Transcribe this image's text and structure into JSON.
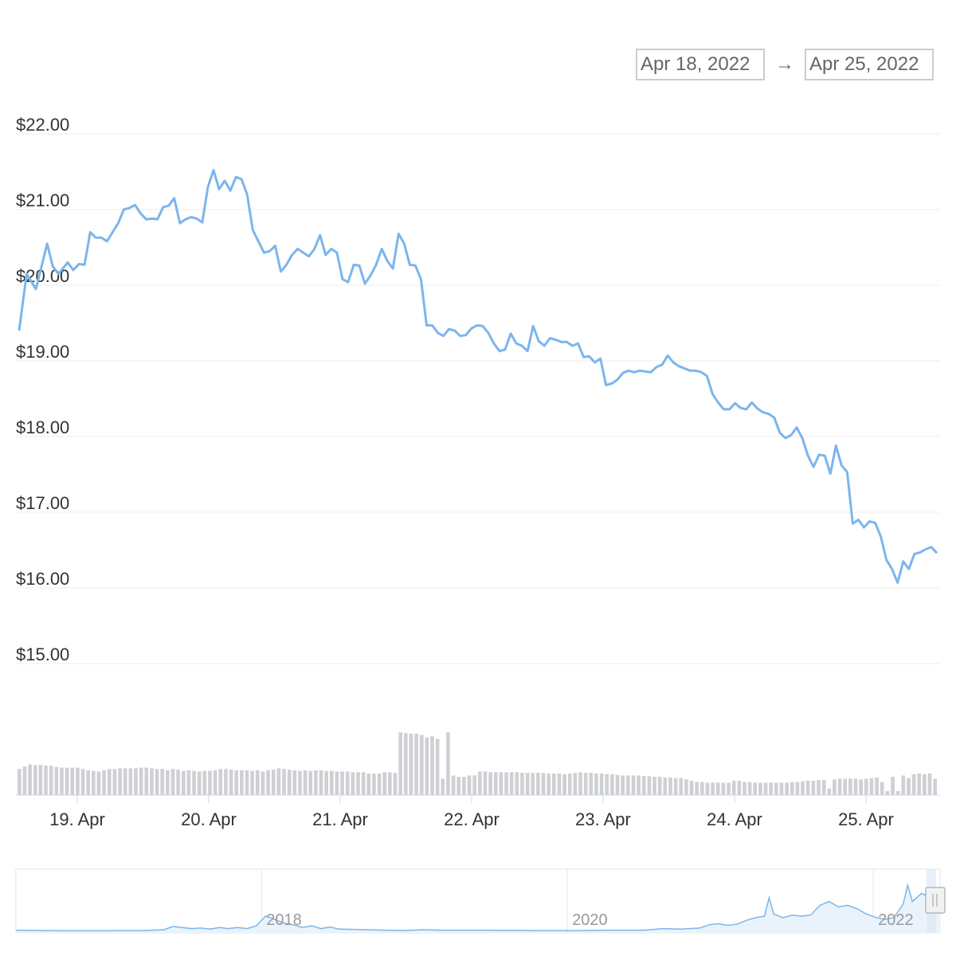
{
  "range_selector": {
    "from": "Apr 18, 2022",
    "arrow": "→",
    "to": "Apr 25, 2022"
  },
  "chart_data": {
    "type": "line",
    "y_axis": {
      "min": 15,
      "max": 22,
      "ticks": [
        "$15.00",
        "$16.00",
        "$17.00",
        "$18.00",
        "$19.00",
        "$20.00",
        "$21.00",
        "$22.00"
      ]
    },
    "x_ticks": [
      {
        "label": "19. Apr",
        "day": 1
      },
      {
        "label": "20. Apr",
        "day": 2
      },
      {
        "label": "21. Apr",
        "day": 3
      },
      {
        "label": "22. Apr",
        "day": 4
      },
      {
        "label": "23. Apr",
        "day": 5
      },
      {
        "label": "24. Apr",
        "day": 6
      },
      {
        "label": "25. Apr",
        "day": 7
      }
    ],
    "price_color": "#7cb5ec",
    "volume_color": "#cfd0d4",
    "price": [
      [
        0.0,
        19.4
      ],
      [
        0.08,
        20.15
      ],
      [
        0.18,
        19.95
      ],
      [
        0.3,
        20.55
      ],
      [
        0.36,
        20.25
      ],
      [
        0.42,
        20.15
      ],
      [
        0.52,
        20.3
      ],
      [
        0.58,
        20.2
      ],
      [
        0.64,
        20.28
      ],
      [
        0.7,
        20.27
      ],
      [
        0.76,
        20.7
      ],
      [
        0.82,
        20.63
      ],
      [
        0.88,
        20.63
      ],
      [
        0.94,
        20.58
      ],
      [
        1.0,
        20.7
      ],
      [
        1.06,
        20.82
      ],
      [
        1.12,
        21.0
      ],
      [
        1.18,
        21.02
      ],
      [
        1.24,
        21.06
      ],
      [
        1.3,
        20.95
      ],
      [
        1.36,
        20.87
      ],
      [
        1.42,
        20.88
      ],
      [
        1.48,
        20.87
      ],
      [
        1.54,
        21.03
      ],
      [
        1.6,
        21.05
      ],
      [
        1.66,
        21.15
      ],
      [
        1.72,
        20.82
      ],
      [
        1.78,
        20.87
      ],
      [
        1.84,
        20.9
      ],
      [
        1.9,
        20.88
      ],
      [
        1.96,
        20.83
      ],
      [
        2.02,
        21.3
      ],
      [
        2.08,
        21.52
      ],
      [
        2.14,
        21.27
      ],
      [
        2.2,
        21.38
      ],
      [
        2.26,
        21.25
      ],
      [
        2.32,
        21.43
      ],
      [
        2.38,
        21.4
      ],
      [
        2.44,
        21.2
      ],
      [
        2.5,
        20.73
      ],
      [
        2.56,
        20.58
      ],
      [
        2.62,
        20.43
      ],
      [
        2.68,
        20.45
      ],
      [
        2.74,
        20.52
      ],
      [
        2.8,
        20.18
      ],
      [
        2.86,
        20.27
      ],
      [
        2.92,
        20.4
      ],
      [
        2.98,
        20.48
      ],
      [
        3.04,
        20.43
      ],
      [
        3.1,
        20.38
      ],
      [
        3.16,
        20.48
      ],
      [
        3.22,
        20.66
      ],
      [
        3.28,
        20.4
      ],
      [
        3.34,
        20.48
      ],
      [
        3.4,
        20.43
      ],
      [
        3.46,
        20.08
      ],
      [
        3.52,
        20.04
      ],
      [
        3.58,
        20.27
      ],
      [
        3.64,
        20.26
      ],
      [
        3.7,
        20.02
      ],
      [
        3.76,
        20.13
      ],
      [
        3.82,
        20.27
      ],
      [
        3.88,
        20.48
      ],
      [
        3.94,
        20.32
      ],
      [
        4.0,
        20.22
      ],
      [
        4.06,
        20.68
      ],
      [
        4.12,
        20.55
      ],
      [
        4.18,
        20.27
      ],
      [
        4.24,
        20.26
      ],
      [
        4.3,
        20.08
      ],
      [
        4.36,
        19.47
      ],
      [
        4.42,
        19.47
      ],
      [
        4.48,
        19.37
      ],
      [
        4.54,
        19.33
      ],
      [
        4.6,
        19.42
      ],
      [
        4.66,
        19.4
      ],
      [
        4.72,
        19.33
      ],
      [
        4.78,
        19.34
      ],
      [
        4.84,
        19.43
      ],
      [
        4.9,
        19.47
      ],
      [
        4.96,
        19.46
      ],
      [
        5.02,
        19.37
      ],
      [
        5.08,
        19.23
      ],
      [
        5.14,
        19.13
      ],
      [
        5.2,
        19.15
      ],
      [
        5.26,
        19.36
      ],
      [
        5.32,
        19.23
      ],
      [
        5.38,
        19.2
      ],
      [
        5.44,
        19.13
      ],
      [
        5.5,
        19.46
      ],
      [
        5.56,
        19.26
      ],
      [
        5.62,
        19.2
      ],
      [
        5.68,
        19.3
      ],
      [
        5.74,
        19.28
      ],
      [
        5.8,
        19.25
      ],
      [
        5.86,
        19.25
      ],
      [
        5.92,
        19.2
      ],
      [
        5.98,
        19.23
      ],
      [
        6.04,
        19.05
      ],
      [
        6.1,
        19.06
      ],
      [
        6.16,
        18.98
      ],
      [
        6.22,
        19.03
      ],
      [
        6.28,
        18.68
      ],
      [
        6.34,
        18.7
      ],
      [
        6.4,
        18.75
      ],
      [
        6.46,
        18.84
      ],
      [
        6.52,
        18.87
      ],
      [
        6.58,
        18.85
      ],
      [
        6.64,
        18.87
      ],
      [
        6.7,
        18.86
      ],
      [
        6.76,
        18.85
      ],
      [
        6.82,
        18.92
      ],
      [
        6.88,
        18.95
      ],
      [
        6.94,
        19.07
      ],
      [
        7.0,
        18.98
      ],
      [
        7.06,
        18.93
      ],
      [
        7.12,
        18.9
      ],
      [
        7.18,
        18.87
      ],
      [
        7.24,
        18.87
      ],
      [
        7.3,
        18.85
      ],
      [
        7.36,
        18.8
      ],
      [
        7.42,
        18.56
      ],
      [
        7.48,
        18.45
      ],
      [
        7.54,
        18.36
      ],
      [
        7.6,
        18.36
      ],
      [
        7.66,
        18.44
      ],
      [
        7.72,
        18.38
      ],
      [
        7.78,
        18.36
      ],
      [
        7.84,
        18.45
      ],
      [
        7.9,
        18.37
      ],
      [
        7.96,
        18.32
      ],
      [
        8.02,
        18.3
      ],
      [
        8.08,
        18.25
      ],
      [
        8.14,
        18.05
      ],
      [
        8.2,
        17.98
      ],
      [
        8.26,
        18.02
      ],
      [
        8.32,
        18.12
      ],
      [
        8.38,
        17.98
      ],
      [
        8.44,
        17.75
      ],
      [
        8.5,
        17.6
      ],
      [
        8.56,
        17.76
      ],
      [
        8.62,
        17.75
      ],
      [
        8.68,
        17.51
      ],
      [
        8.74,
        17.88
      ],
      [
        8.8,
        17.62
      ],
      [
        8.86,
        17.53
      ],
      [
        8.92,
        16.85
      ],
      [
        8.98,
        16.9
      ],
      [
        9.04,
        16.8
      ],
      [
        9.1,
        16.88
      ],
      [
        9.16,
        16.86
      ],
      [
        9.22,
        16.68
      ],
      [
        9.28,
        16.37
      ],
      [
        9.34,
        16.25
      ],
      [
        9.4,
        16.07
      ],
      [
        9.46,
        16.35
      ],
      [
        9.52,
        16.25
      ],
      [
        9.58,
        16.45
      ],
      [
        9.64,
        16.47
      ],
      [
        9.7,
        16.51
      ],
      [
        9.76,
        16.54
      ],
      [
        9.82,
        16.46
      ]
    ],
    "volume": [
      0.4,
      0.44,
      0.47,
      0.46,
      0.46,
      0.45,
      0.45,
      0.43,
      0.42,
      0.42,
      0.42,
      0.42,
      0.4,
      0.38,
      0.37,
      0.36,
      0.38,
      0.4,
      0.4,
      0.41,
      0.41,
      0.41,
      0.41,
      0.42,
      0.42,
      0.41,
      0.4,
      0.4,
      0.38,
      0.4,
      0.39,
      0.37,
      0.38,
      0.37,
      0.36,
      0.37,
      0.37,
      0.38,
      0.4,
      0.4,
      0.39,
      0.38,
      0.38,
      0.38,
      0.37,
      0.38,
      0.36,
      0.38,
      0.39,
      0.41,
      0.4,
      0.39,
      0.38,
      0.37,
      0.38,
      0.37,
      0.38,
      0.38,
      0.37,
      0.37,
      0.36,
      0.36,
      0.36,
      0.35,
      0.35,
      0.35,
      0.33,
      0.33,
      0.33,
      0.35,
      0.35,
      0.34,
      0.96,
      0.95,
      0.94,
      0.94,
      0.92,
      0.88,
      0.9,
      0.86,
      0.25,
      0.96,
      0.3,
      0.28,
      0.28,
      0.3,
      0.3,
      0.36,
      0.36,
      0.35,
      0.35,
      0.35,
      0.35,
      0.35,
      0.35,
      0.34,
      0.34,
      0.34,
      0.34,
      0.34,
      0.33,
      0.33,
      0.33,
      0.32,
      0.33,
      0.34,
      0.35,
      0.34,
      0.34,
      0.33,
      0.33,
      0.32,
      0.32,
      0.31,
      0.3,
      0.3,
      0.3,
      0.3,
      0.29,
      0.29,
      0.28,
      0.28,
      0.27,
      0.27,
      0.26,
      0.26,
      0.24,
      0.22,
      0.2,
      0.2,
      0.19,
      0.19,
      0.19,
      0.19,
      0.19,
      0.22,
      0.22,
      0.2,
      0.2,
      0.19,
      0.19,
      0.19,
      0.19,
      0.19,
      0.19,
      0.19,
      0.2,
      0.2,
      0.21,
      0.22,
      0.22,
      0.23,
      0.23,
      0.1,
      0.24,
      0.25,
      0.25,
      0.25,
      0.25,
      0.24,
      0.25,
      0.26,
      0.27,
      0.2,
      0.06,
      0.28,
      0.06,
      0.3,
      0.26,
      0.32,
      0.33,
      0.32,
      0.33,
      0.25
    ]
  },
  "navigator": {
    "year_labels": [
      {
        "label": "2018",
        "pos": 0.264
      },
      {
        "label": "2020",
        "pos": 0.595
      },
      {
        "label": "2022",
        "pos": 0.926
      }
    ],
    "series": [
      [
        0.0,
        0.02
      ],
      [
        0.05,
        0.01
      ],
      [
        0.1,
        0.01
      ],
      [
        0.14,
        0.015
      ],
      [
        0.16,
        0.03
      ],
      [
        0.17,
        0.09
      ],
      [
        0.18,
        0.07
      ],
      [
        0.19,
        0.05
      ],
      [
        0.2,
        0.06
      ],
      [
        0.21,
        0.04
      ],
      [
        0.22,
        0.07
      ],
      [
        0.23,
        0.05
      ],
      [
        0.24,
        0.07
      ],
      [
        0.25,
        0.05
      ],
      [
        0.26,
        0.1
      ],
      [
        0.27,
        0.28
      ],
      [
        0.28,
        0.22
      ],
      [
        0.29,
        0.15
      ],
      [
        0.3,
        0.12
      ],
      [
        0.31,
        0.07
      ],
      [
        0.32,
        0.1
      ],
      [
        0.33,
        0.05
      ],
      [
        0.34,
        0.08
      ],
      [
        0.35,
        0.04
      ],
      [
        0.38,
        0.03
      ],
      [
        0.4,
        0.02
      ],
      [
        0.42,
        0.015
      ],
      [
        0.44,
        0.03
      ],
      [
        0.46,
        0.02
      ],
      [
        0.5,
        0.02
      ],
      [
        0.56,
        0.015
      ],
      [
        0.6,
        0.01
      ],
      [
        0.64,
        0.02
      ],
      [
        0.68,
        0.02
      ],
      [
        0.7,
        0.05
      ],
      [
        0.72,
        0.04
      ],
      [
        0.74,
        0.06
      ],
      [
        0.75,
        0.12
      ],
      [
        0.76,
        0.14
      ],
      [
        0.77,
        0.11
      ],
      [
        0.78,
        0.13
      ],
      [
        0.79,
        0.2
      ],
      [
        0.8,
        0.25
      ],
      [
        0.81,
        0.28
      ],
      [
        0.815,
        0.62
      ],
      [
        0.82,
        0.32
      ],
      [
        0.83,
        0.25
      ],
      [
        0.84,
        0.3
      ],
      [
        0.85,
        0.28
      ],
      [
        0.86,
        0.3
      ],
      [
        0.87,
        0.48
      ],
      [
        0.88,
        0.55
      ],
      [
        0.89,
        0.45
      ],
      [
        0.9,
        0.48
      ],
      [
        0.91,
        0.42
      ],
      [
        0.92,
        0.32
      ],
      [
        0.93,
        0.26
      ],
      [
        0.94,
        0.22
      ],
      [
        0.95,
        0.25
      ],
      [
        0.96,
        0.5
      ],
      [
        0.965,
        0.85
      ],
      [
        0.97,
        0.55
      ],
      [
        0.98,
        0.7
      ],
      [
        0.99,
        0.62
      ],
      [
        1.0,
        0.6
      ]
    ]
  }
}
